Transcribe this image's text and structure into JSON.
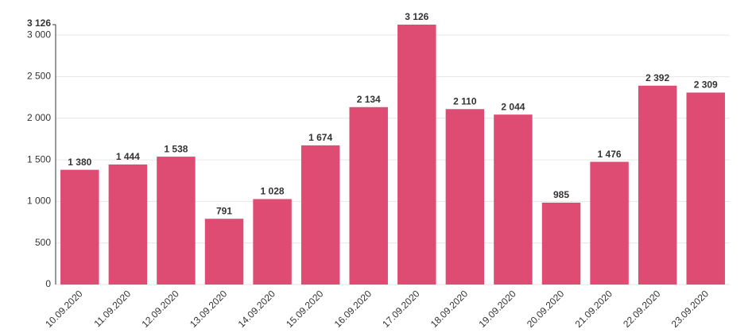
{
  "chart_data": {
    "type": "bar",
    "categories": [
      "10.09.2020",
      "11.09.2020",
      "12.09.2020",
      "13.09.2020",
      "14.09.2020",
      "15.09.2020",
      "16.09.2020",
      "17.09.2020",
      "18.09.2020",
      "19.09.2020",
      "20.09.2020",
      "21.09.2020",
      "22.09.2020",
      "23.09.2020"
    ],
    "values": [
      1380,
      1444,
      1538,
      791,
      1028,
      1674,
      2134,
      3126,
      2110,
      2044,
      985,
      1476,
      2392,
      2309
    ],
    "value_labels": [
      "1 380",
      "1 444",
      "1 538",
      "791",
      "1 028",
      "1 674",
      "2 134",
      "3 126",
      "2 110",
      "2 044",
      "985",
      "1 476",
      "2 392",
      "2 309"
    ],
    "color": "#de4c74",
    "ylim": [
      0,
      3126
    ],
    "yticks": [
      0,
      500,
      {
        "value": 1000,
        "label": "1 000"
      },
      {
        "value": 1500,
        "label": "1 500"
      },
      {
        "value": 2000,
        "label": "2 000"
      },
      {
        "value": 2500,
        "label": "2 500"
      },
      {
        "value": 3000,
        "label": "3 000"
      },
      {
        "value": 3126,
        "label": "3 126"
      }
    ],
    "grid": true
  }
}
